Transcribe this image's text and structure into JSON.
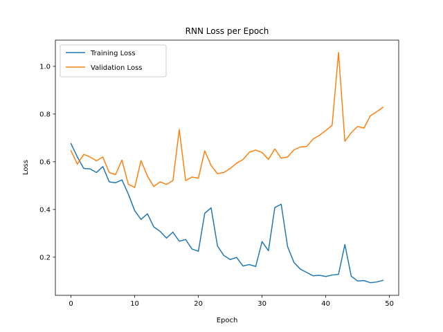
{
  "chart_data": {
    "type": "line",
    "title": "RNN Loss per Epoch",
    "xlabel": "Epoch",
    "ylabel": "Loss",
    "xlim": [
      -2.45,
      51.45
    ],
    "ylim": [
      0.04,
      1.11
    ],
    "xticks": [
      0,
      10,
      20,
      30,
      40,
      50
    ],
    "yticks": [
      0.2,
      0.4,
      0.6,
      0.8,
      1.0
    ],
    "xtick_labels": [
      "0",
      "10",
      "20",
      "30",
      "40",
      "50"
    ],
    "ytick_labels": [
      "0.2",
      "0.4",
      "0.6",
      "0.8",
      "1.0"
    ],
    "grid": false,
    "legend_position": "upper-left",
    "x": [
      0,
      1,
      2,
      3,
      4,
      5,
      6,
      7,
      8,
      9,
      10,
      11,
      12,
      13,
      14,
      15,
      16,
      17,
      18,
      19,
      20,
      21,
      22,
      23,
      24,
      25,
      26,
      27,
      28,
      29,
      30,
      31,
      32,
      33,
      34,
      35,
      36,
      37,
      38,
      39,
      40,
      41,
      42,
      43,
      44,
      45,
      46,
      47,
      48,
      49
    ],
    "series": [
      {
        "name": "Training Loss",
        "color": "#1f77b4",
        "values": [
          0.676,
          0.62,
          0.572,
          0.57,
          0.555,
          0.58,
          0.516,
          0.512,
          0.524,
          0.465,
          0.395,
          0.358,
          0.382,
          0.327,
          0.308,
          0.28,
          0.305,
          0.267,
          0.274,
          0.234,
          0.225,
          0.384,
          0.407,
          0.247,
          0.207,
          0.19,
          0.199,
          0.163,
          0.169,
          0.161,
          0.265,
          0.227,
          0.408,
          0.422,
          0.245,
          0.178,
          0.15,
          0.136,
          0.122,
          0.124,
          0.119,
          0.125,
          0.128,
          0.253,
          0.12,
          0.1,
          0.102,
          0.093,
          0.096,
          0.103
        ]
      },
      {
        "name": "Validation Loss",
        "color": "#ff7f0e",
        "values": [
          0.646,
          0.59,
          0.631,
          0.62,
          0.604,
          0.62,
          0.555,
          0.546,
          0.607,
          0.506,
          0.492,
          0.605,
          0.54,
          0.496,
          0.516,
          0.505,
          0.521,
          0.735,
          0.521,
          0.536,
          0.531,
          0.646,
          0.584,
          0.55,
          0.555,
          0.572,
          0.594,
          0.609,
          0.64,
          0.649,
          0.639,
          0.61,
          0.654,
          0.615,
          0.62,
          0.65,
          0.662,
          0.664,
          0.695,
          0.711,
          0.731,
          0.753,
          1.058,
          0.686,
          0.722,
          0.748,
          0.741,
          0.793,
          0.81,
          0.829
        ]
      }
    ]
  }
}
